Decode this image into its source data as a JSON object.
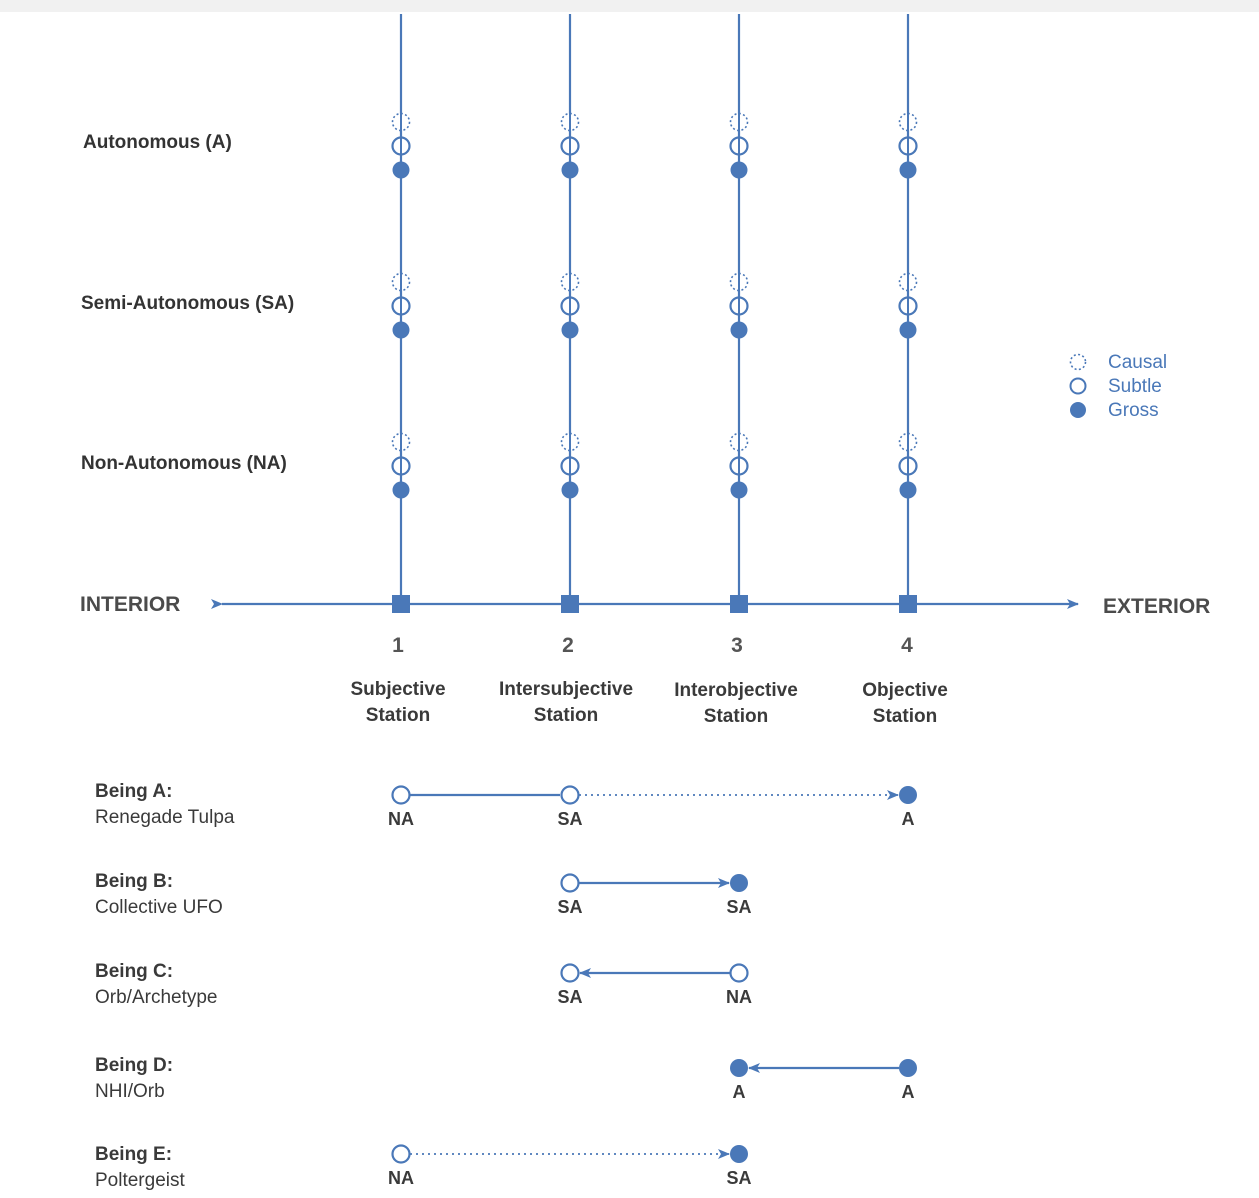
{
  "colors": {
    "accent": "#4a78b8",
    "text": "#3a3a3a"
  },
  "axis": {
    "left": "INTERIOR",
    "right": "EXTERIOR"
  },
  "rows": [
    {
      "key": "A",
      "label": "Autonomous (A)"
    },
    {
      "key": "SA",
      "label": "Semi-Autonomous (SA)"
    },
    {
      "key": "NA",
      "label": "Non-Autonomous (NA)"
    }
  ],
  "stations": [
    {
      "number": "1",
      "line1": "Subjective",
      "line2": "Station"
    },
    {
      "number": "2",
      "line1": "Intersubjective",
      "line2": "Station"
    },
    {
      "number": "3",
      "line1": "Interobjective",
      "line2": "Station"
    },
    {
      "number": "4",
      "line1": "Objective",
      "line2": "Station"
    }
  ],
  "legend": [
    {
      "icon": "dotted-circle-icon",
      "label": "Causal"
    },
    {
      "icon": "open-circle-icon",
      "label": "Subtle"
    },
    {
      "icon": "filled-circle-icon",
      "label": "Gross"
    }
  ],
  "beings": [
    {
      "title": "Being A:",
      "name": "Renegade Tulpa",
      "points": [
        {
          "station": 1,
          "level": "subtle",
          "label": "NA"
        },
        {
          "station": 2,
          "level": "subtle",
          "label": "SA"
        },
        {
          "station": 4,
          "level": "gross",
          "label": "A"
        }
      ],
      "links": [
        {
          "from": 0,
          "to": 1,
          "style": "solid",
          "arrow": false
        },
        {
          "from": 1,
          "to": 2,
          "style": "dotted",
          "arrow": true
        }
      ]
    },
    {
      "title": "Being B:",
      "name": "Collective UFO",
      "points": [
        {
          "station": 2,
          "level": "subtle",
          "label": "SA"
        },
        {
          "station": 3,
          "level": "gross",
          "label": "SA"
        }
      ],
      "links": [
        {
          "from": 0,
          "to": 1,
          "style": "solid",
          "arrow": true
        }
      ]
    },
    {
      "title": "Being C:",
      "name": "Orb/Archetype",
      "points": [
        {
          "station": 3,
          "level": "subtle",
          "label": "NA"
        },
        {
          "station": 2,
          "level": "subtle",
          "label": "SA"
        }
      ],
      "links": [
        {
          "from": 0,
          "to": 1,
          "style": "solid",
          "arrow": true
        }
      ]
    },
    {
      "title": "Being D:",
      "name": "NHI/Orb",
      "points": [
        {
          "station": 4,
          "level": "gross",
          "label": "A"
        },
        {
          "station": 3,
          "level": "gross",
          "label": "A"
        }
      ],
      "links": [
        {
          "from": 0,
          "to": 1,
          "style": "solid",
          "arrow": true
        }
      ]
    },
    {
      "title": "Being E:",
      "name": "Poltergeist",
      "points": [
        {
          "station": 1,
          "level": "subtle",
          "label": "NA"
        },
        {
          "station": 3,
          "level": "gross",
          "label": "SA"
        }
      ],
      "links": [
        {
          "from": 0,
          "to": 1,
          "style": "dotted",
          "arrow": true
        }
      ]
    }
  ]
}
